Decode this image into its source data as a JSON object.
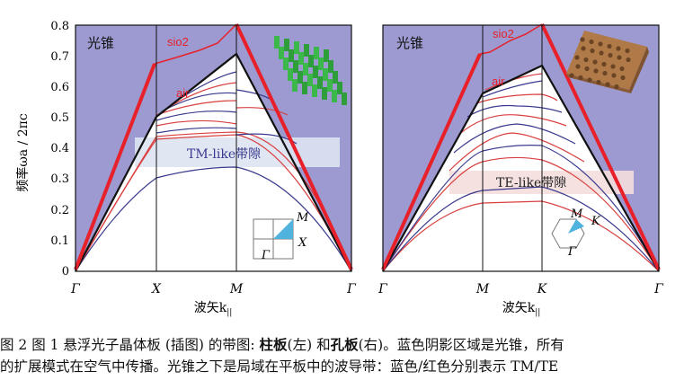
{
  "figure": {
    "ylabel": "频率ωa / 2πc",
    "yticks": [
      "0",
      "0.1",
      "0.2",
      "0.3",
      "0.4",
      "0.5",
      "0.6",
      "0.7",
      "0.8"
    ],
    "xlabel": "波矢k",
    "xlabel_sub": "||",
    "left": {
      "light_cone_label": "光锥",
      "sio2_label": "sio2",
      "air_label": "air",
      "gap_label": "TM-like带隙",
      "xticks": [
        "Γ",
        "X",
        "M",
        "Γ"
      ],
      "inset_labels": [
        "M",
        "X",
        "Γ"
      ]
    },
    "right": {
      "light_cone_label": "光锥",
      "sio2_label": "sio2",
      "air_label": "air",
      "gap_label": "TE-like带隙",
      "xticks": [
        "Γ",
        "M",
        "K",
        "Γ"
      ],
      "inset_labels": [
        "M",
        "K",
        "Γ"
      ]
    }
  },
  "caption": {
    "prefix": "图 2   图 1 悬浮光子晶体板 (插图) 的带图: ",
    "bold1": "柱板",
    "mid1": "(左) 和",
    "bold2": "孔板",
    "mid2": "(右)。蓝色阴影区域是光锥，所有",
    "line2": "的扩展模式在空气中传播。光锥之下是局域在平板中的波导带：蓝色/红色分别表示 TM/TE"
  },
  "colors": {
    "light_cone": "#9c9ad0",
    "te_band": "#d94040",
    "tm_band": "#3a3a8e",
    "sio2_line": "#e8202a",
    "gap_tm": "#dde4f2",
    "gap_te": "#f5dede"
  }
}
